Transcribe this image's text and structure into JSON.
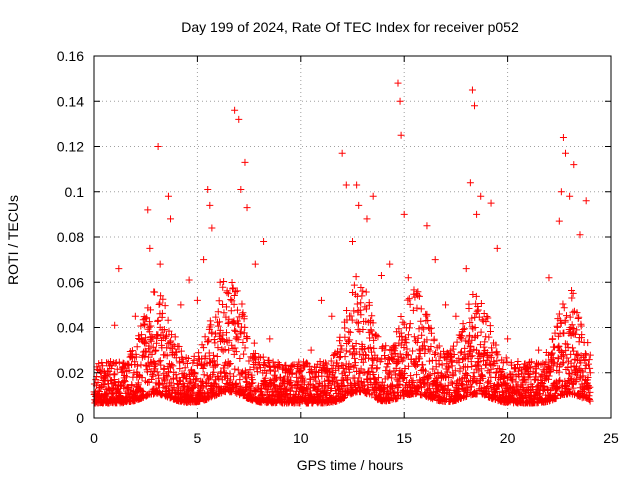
{
  "chart_data": {
    "type": "scatter",
    "title": "Day 199 of 2024, Rate Of TEC Index for receiver p052",
    "xlabel": "GPS time / hours",
    "ylabel": "ROTI / TECUs",
    "xlim": [
      0,
      25
    ],
    "ylim": [
      0,
      0.16
    ],
    "x_ticks": [
      "0",
      "5",
      "10",
      "15",
      "20",
      "25"
    ],
    "y_ticks": [
      "0",
      "0.02",
      "0.04",
      "0.06",
      "0.08",
      "0.1",
      "0.12",
      "0.14",
      "0.16"
    ],
    "grid": true,
    "marker": "plus",
    "color": "#ff0000",
    "series": [
      {
        "points": [
          [
            0.2,
            0.012
          ],
          [
            0.5,
            0.018
          ],
          [
            0.8,
            0.025
          ],
          [
            1.0,
            0.041
          ],
          [
            1.2,
            0.066
          ],
          [
            1.5,
            0.022
          ],
          [
            2.0,
            0.045
          ],
          [
            2.3,
            0.035
          ],
          [
            2.6,
            0.092
          ],
          [
            2.7,
            0.075
          ],
          [
            3.1,
            0.12
          ],
          [
            3.2,
            0.068
          ],
          [
            3.6,
            0.098
          ],
          [
            3.7,
            0.088
          ],
          [
            4.2,
            0.05
          ],
          [
            4.6,
            0.061
          ],
          [
            5.0,
            0.052
          ],
          [
            5.3,
            0.07
          ],
          [
            5.5,
            0.101
          ],
          [
            5.6,
            0.094
          ],
          [
            5.7,
            0.084
          ],
          [
            6.1,
            0.06
          ],
          [
            6.5,
            0.055
          ],
          [
            6.8,
            0.136
          ],
          [
            7.0,
            0.132
          ],
          [
            7.1,
            0.101
          ],
          [
            7.3,
            0.113
          ],
          [
            7.4,
            0.093
          ],
          [
            7.8,
            0.068
          ],
          [
            8.2,
            0.078
          ],
          [
            8.5,
            0.035
          ],
          [
            9.0,
            0.018
          ],
          [
            9.5,
            0.012
          ],
          [
            10.0,
            0.022
          ],
          [
            10.5,
            0.03
          ],
          [
            11.0,
            0.052
          ],
          [
            11.5,
            0.045
          ],
          [
            12.0,
            0.117
          ],
          [
            12.2,
            0.103
          ],
          [
            12.5,
            0.078
          ],
          [
            12.7,
            0.103
          ],
          [
            12.8,
            0.094
          ],
          [
            13.2,
            0.088
          ],
          [
            13.5,
            0.098
          ],
          [
            13.9,
            0.063
          ],
          [
            14.3,
            0.068
          ],
          [
            14.7,
            0.148
          ],
          [
            14.8,
            0.14
          ],
          [
            14.85,
            0.125
          ],
          [
            15.0,
            0.09
          ],
          [
            15.2,
            0.062
          ],
          [
            15.6,
            0.055
          ],
          [
            16.1,
            0.085
          ],
          [
            16.5,
            0.07
          ],
          [
            17.0,
            0.05
          ],
          [
            17.5,
            0.045
          ],
          [
            18.0,
            0.066
          ],
          [
            18.2,
            0.104
          ],
          [
            18.3,
            0.145
          ],
          [
            18.4,
            0.138
          ],
          [
            18.5,
            0.09
          ],
          [
            18.7,
            0.098
          ],
          [
            19.2,
            0.095
          ],
          [
            19.5,
            0.075
          ],
          [
            20.0,
            0.035
          ],
          [
            20.5,
            0.025
          ],
          [
            21.0,
            0.018
          ],
          [
            21.5,
            0.03
          ],
          [
            22.0,
            0.062
          ],
          [
            22.5,
            0.087
          ],
          [
            22.6,
            0.1
          ],
          [
            22.7,
            0.124
          ],
          [
            22.8,
            0.117
          ],
          [
            23.0,
            0.098
          ],
          [
            23.2,
            0.112
          ],
          [
            23.5,
            0.081
          ],
          [
            23.8,
            0.096
          ],
          [
            24.0,
            0.02
          ]
        ]
      }
    ]
  }
}
